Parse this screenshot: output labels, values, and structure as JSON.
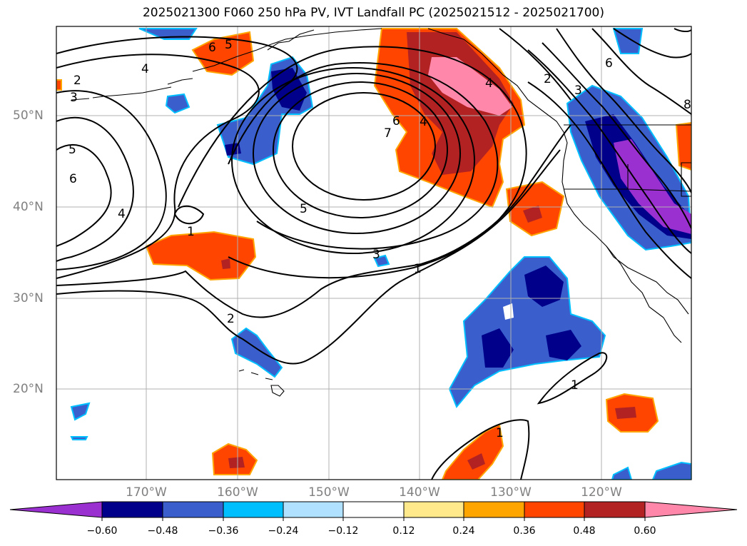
{
  "title": "2025021300 F060 250 hPa PV, IVT Landfall PC (2025021512 - 2025021700)",
  "lat_labels": [
    "50°N",
    "40°N",
    "30°N",
    "20°N"
  ],
  "lon_labels": [
    "170°W",
    "160°W",
    "150°W",
    "140°W",
    "130°W",
    "120°W"
  ],
  "colorbar": {
    "ticks": [
      "−0.60",
      "−0.48",
      "−0.36",
      "−0.24",
      "−0.12",
      "0.12",
      "0.24",
      "0.36",
      "0.48",
      "0.60"
    ],
    "colors": [
      "#9b30d0",
      "#00008b",
      "#3a5fcd",
      "#00bfff",
      "#b0e2ff",
      "#ffffff",
      "#ffe98a",
      "#ffa500",
      "#ff4500",
      "#b22222",
      "#ff88aa"
    ]
  },
  "contour_labels": [
    "2",
    "3",
    "4",
    "5",
    "6",
    "5",
    "4",
    "1",
    "6",
    "5",
    "7",
    "6",
    "4",
    "3",
    "1",
    "2",
    "1",
    "1",
    "4",
    "2",
    "3",
    "6",
    "8"
  ]
}
